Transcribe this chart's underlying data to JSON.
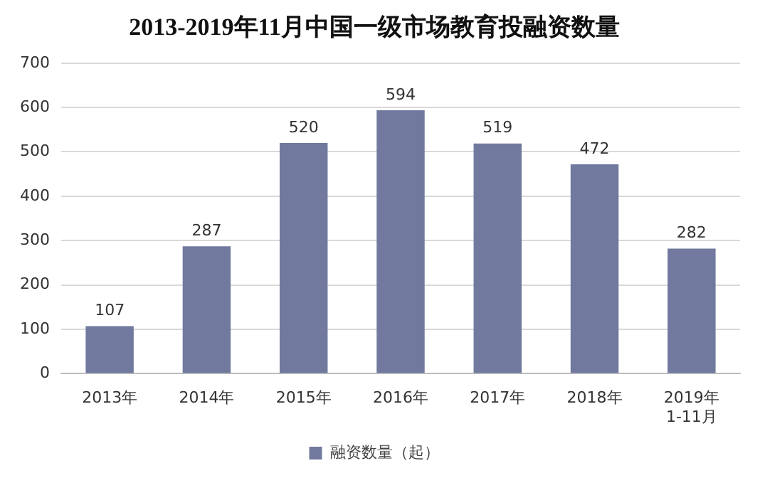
{
  "chart_data": {
    "type": "bar",
    "title": "2013-2019年11月中国一级市场教育投融资数量",
    "categories": [
      "2013年",
      "2014年",
      "2015年",
      "2016年",
      "2017年",
      "2018年",
      "2019年\n1-11月"
    ],
    "series": [
      {
        "name": "融资数量（起）",
        "color": "#717a9e",
        "values": [
          107,
          287,
          520,
          594,
          519,
          472,
          282
        ]
      }
    ],
    "ylim": [
      0,
      700
    ],
    "yticks": [
      0,
      100,
      200,
      300,
      400,
      500,
      600,
      700
    ],
    "grid": "y",
    "legend": "bottom",
    "data_labels": true
  }
}
